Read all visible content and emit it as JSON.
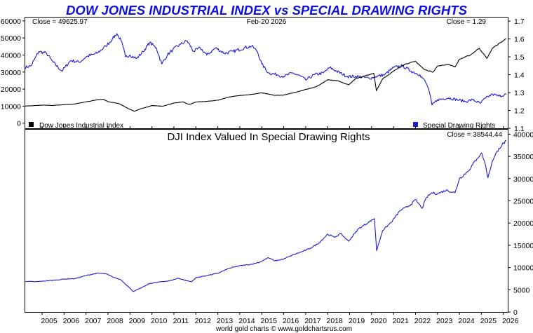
{
  "title": "DOW JONES INDUSTRIAL INDEX vs SPECIAL DRAWING RIGHTS",
  "colors": {
    "title": "#1010dd",
    "dji": "#000000",
    "sdr": "#1a1ad8",
    "ratio": "#1a1ad8",
    "frame": "#000000"
  },
  "footer": "world gold charts © www.goldchartsrus.com",
  "chart_data": [
    {
      "type": "line",
      "title": "DOW JONES INDUSTRIAL INDEX vs SPECIAL DRAWING RIGHTS",
      "date_label": "Feb-20  2026",
      "left_readout": "Close = 49625.97",
      "right_readout": "Close = 1.29",
      "x_ticks": [
        "2005",
        "2006",
        "2007",
        "2008",
        "2009",
        "2010",
        "2011",
        "2012",
        "2013",
        "2014",
        "2015",
        "2016",
        "2017",
        "2018",
        "2019",
        "2020",
        "2021",
        "2022",
        "2023",
        "2024",
        "2025",
        "2026"
      ],
      "x_range": [
        2004.2,
        2026.2
      ],
      "y_left": {
        "range": [
          -3000,
          62000
        ],
        "ticks": [
          "0",
          "10000",
          "20000",
          "30000",
          "40000",
          "50000",
          "60000"
        ]
      },
      "y_right": {
        "range": [
          1.1,
          1.72
        ],
        "ticks": [
          "1.1",
          "1.2",
          "1.3",
          "1.4",
          "1.5",
          "1.6",
          "1.7"
        ]
      },
      "legend": {
        "placement": "bottom",
        "left_label": "Dow Jones Industrial Index",
        "right_label": "Special Drawing Rights"
      },
      "series": [
        {
          "name": "Dow Jones Industrial Index",
          "axis": "left",
          "color": "#000000",
          "points": [
            [
              2004.2,
              10000
            ],
            [
              2004.5,
              10200
            ],
            [
              2005.0,
              10600
            ],
            [
              2005.5,
              10400
            ],
            [
              2006.0,
              10900
            ],
            [
              2006.5,
              11300
            ],
            [
              2007.0,
              12500
            ],
            [
              2007.5,
              13700
            ],
            [
              2007.8,
              14000
            ],
            [
              2008.0,
              12600
            ],
            [
              2008.5,
              11500
            ],
            [
              2008.9,
              8700
            ],
            [
              2009.2,
              7000
            ],
            [
              2009.5,
              8500
            ],
            [
              2010.0,
              10300
            ],
            [
              2010.5,
              10000
            ],
            [
              2011.0,
              11800
            ],
            [
              2011.4,
              12500
            ],
            [
              2011.7,
              11000
            ],
            [
              2012.0,
              12400
            ],
            [
              2012.5,
              12800
            ],
            [
              2013.0,
              13500
            ],
            [
              2013.5,
              15300
            ],
            [
              2014.0,
              16300
            ],
            [
              2014.5,
              16800
            ],
            [
              2015.0,
              17800
            ],
            [
              2015.6,
              16300
            ],
            [
              2016.0,
              16500
            ],
            [
              2016.5,
              18000
            ],
            [
              2017.0,
              19800
            ],
            [
              2017.5,
              21500
            ],
            [
              2018.0,
              25500
            ],
            [
              2018.5,
              24800
            ],
            [
              2018.95,
              22500
            ],
            [
              2019.3,
              26300
            ],
            [
              2019.9,
              28500
            ],
            [
              2020.1,
              29200
            ],
            [
              2020.22,
              19000
            ],
            [
              2020.5,
              26000
            ],
            [
              2021.0,
              30500
            ],
            [
              2021.5,
              34500
            ],
            [
              2022.0,
              36300
            ],
            [
              2022.4,
              31500
            ],
            [
              2022.8,
              30000
            ],
            [
              2023.0,
              33500
            ],
            [
              2023.5,
              34500
            ],
            [
              2023.8,
              33000
            ],
            [
              2024.0,
              37500
            ],
            [
              2024.5,
              40000
            ],
            [
              2024.9,
              44000
            ],
            [
              2025.25,
              38000
            ],
            [
              2025.5,
              44000
            ],
            [
              2025.9,
              47500
            ],
            [
              2026.13,
              49625.97
            ]
          ]
        },
        {
          "name": "Special Drawing Rights",
          "axis": "right",
          "color": "#1a1ad8",
          "points": [
            [
              2004.2,
              1.44
            ],
            [
              2004.5,
              1.45
            ],
            [
              2004.85,
              1.53
            ],
            [
              2005.2,
              1.52
            ],
            [
              2005.5,
              1.47
            ],
            [
              2005.9,
              1.42
            ],
            [
              2006.3,
              1.48
            ],
            [
              2006.7,
              1.47
            ],
            [
              2007.0,
              1.5
            ],
            [
              2007.5,
              1.52
            ],
            [
              2007.9,
              1.56
            ],
            [
              2008.2,
              1.6
            ],
            [
              2008.4,
              1.63
            ],
            [
              2008.6,
              1.59
            ],
            [
              2008.8,
              1.5
            ],
            [
              2009.0,
              1.51
            ],
            [
              2009.3,
              1.49
            ],
            [
              2009.6,
              1.53
            ],
            [
              2009.9,
              1.58
            ],
            [
              2010.2,
              1.55
            ],
            [
              2010.45,
              1.46
            ],
            [
              2010.7,
              1.51
            ],
            [
              2010.95,
              1.54
            ],
            [
              2011.3,
              1.57
            ],
            [
              2011.6,
              1.59
            ],
            [
              2011.9,
              1.53
            ],
            [
              2012.2,
              1.55
            ],
            [
              2012.5,
              1.51
            ],
            [
              2012.9,
              1.55
            ],
            [
              2013.3,
              1.52
            ],
            [
              2013.7,
              1.53
            ],
            [
              2014.2,
              1.55
            ],
            [
              2014.55,
              1.56
            ],
            [
              2014.8,
              1.53
            ],
            [
              2015.0,
              1.46
            ],
            [
              2015.3,
              1.41
            ],
            [
              2015.7,
              1.4
            ],
            [
              2016.0,
              1.39
            ],
            [
              2016.4,
              1.41
            ],
            [
              2016.8,
              1.39
            ],
            [
              2017.0,
              1.37
            ],
            [
              2017.4,
              1.4
            ],
            [
              2017.8,
              1.41
            ],
            [
              2018.1,
              1.44
            ],
            [
              2018.4,
              1.42
            ],
            [
              2018.9,
              1.39
            ],
            [
              2019.4,
              1.39
            ],
            [
              2019.9,
              1.38
            ],
            [
              2020.2,
              1.39
            ],
            [
              2020.6,
              1.4
            ],
            [
              2021.0,
              1.44
            ],
            [
              2021.4,
              1.45
            ],
            [
              2021.8,
              1.42
            ],
            [
              2022.2,
              1.4
            ],
            [
              2022.45,
              1.36
            ],
            [
              2022.6,
              1.32
            ],
            [
              2022.75,
              1.23
            ],
            [
              2023.0,
              1.26
            ],
            [
              2023.5,
              1.27
            ],
            [
              2023.9,
              1.26
            ],
            [
              2024.3,
              1.25
            ],
            [
              2024.6,
              1.26
            ],
            [
              2024.95,
              1.24
            ],
            [
              2025.2,
              1.27
            ],
            [
              2025.5,
              1.29
            ],
            [
              2025.8,
              1.28
            ],
            [
              2026.13,
              1.29
            ]
          ]
        }
      ]
    },
    {
      "type": "line",
      "title": "DJI Index Valued In Special Drawing Rights",
      "right_readout": "Close = 38544.44",
      "x_ticks": [
        "2005",
        "2006",
        "2007",
        "2008",
        "2009",
        "2010",
        "2011",
        "2012",
        "2013",
        "2014",
        "2015",
        "2016",
        "2017",
        "2018",
        "2019",
        "2020",
        "2021",
        "2022",
        "2023",
        "2024",
        "2025",
        "2026"
      ],
      "x_range": [
        2004.2,
        2026.2
      ],
      "y_right": {
        "range": [
          0,
          41000
        ],
        "ticks": [
          "0",
          "5000",
          "10000",
          "15000",
          "20000",
          "25000",
          "30000",
          "35000",
          "40000"
        ]
      },
      "series": [
        {
          "name": "DJI Index Valued In Special Drawing Rights",
          "axis": "right",
          "color": "#1a1ad8",
          "points": [
            [
              2004.2,
              6900
            ],
            [
              2004.7,
              6800
            ],
            [
              2005.2,
              7000
            ],
            [
              2005.7,
              7200
            ],
            [
              2006.0,
              7400
            ],
            [
              2006.5,
              7500
            ],
            [
              2007.0,
              8200
            ],
            [
              2007.5,
              8700
            ],
            [
              2007.9,
              8600
            ],
            [
              2008.2,
              7900
            ],
            [
              2008.6,
              7200
            ],
            [
              2008.9,
              5800
            ],
            [
              2009.15,
              4600
            ],
            [
              2009.5,
              5400
            ],
            [
              2009.9,
              6400
            ],
            [
              2010.4,
              6800
            ],
            [
              2010.8,
              7000
            ],
            [
              2011.2,
              7600
            ],
            [
              2011.6,
              7000
            ],
            [
              2011.8,
              6800
            ],
            [
              2012.0,
              7700
            ],
            [
              2012.5,
              8200
            ],
            [
              2013.0,
              8700
            ],
            [
              2013.5,
              9800
            ],
            [
              2014.0,
              10400
            ],
            [
              2014.5,
              10700
            ],
            [
              2014.9,
              11200
            ],
            [
              2015.3,
              12200
            ],
            [
              2015.6,
              11500
            ],
            [
              2016.0,
              11900
            ],
            [
              2016.4,
              12800
            ],
            [
              2016.8,
              13500
            ],
            [
              2017.2,
              14300
            ],
            [
              2017.6,
              15500
            ],
            [
              2018.0,
              17500
            ],
            [
              2018.3,
              16800
            ],
            [
              2018.6,
              17600
            ],
            [
              2018.95,
              15900
            ],
            [
              2019.4,
              18700
            ],
            [
              2019.9,
              20300
            ],
            [
              2020.13,
              21000
            ],
            [
              2020.23,
              13800
            ],
            [
              2020.5,
              18300
            ],
            [
              2020.9,
              20200
            ],
            [
              2021.3,
              22800
            ],
            [
              2021.8,
              24200
            ],
            [
              2022.0,
              25300
            ],
            [
              2022.3,
              23300
            ],
            [
              2022.5,
              25800
            ],
            [
              2022.75,
              26800
            ],
            [
              2023.0,
              26600
            ],
            [
              2023.4,
              27400
            ],
            [
              2023.8,
              26800
            ],
            [
              2024.0,
              30000
            ],
            [
              2024.4,
              31700
            ],
            [
              2024.8,
              34500
            ],
            [
              2025.0,
              35800
            ],
            [
              2025.15,
              33800
            ],
            [
              2025.3,
              30200
            ],
            [
              2025.5,
              34000
            ],
            [
              2025.8,
              36800
            ],
            [
              2026.13,
              38544.44
            ]
          ]
        }
      ]
    }
  ]
}
